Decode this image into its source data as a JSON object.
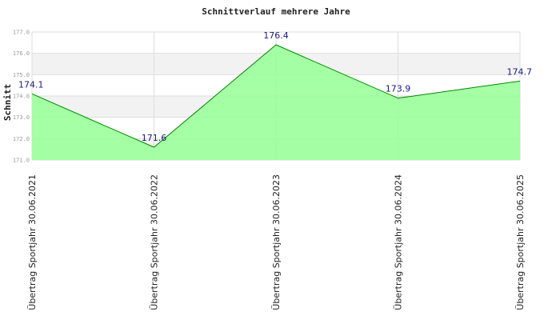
{
  "chart_data": {
    "type": "area",
    "title": "Schnittverlauf mehrere Jahre",
    "xlabel": "",
    "ylabel": "Schnitt",
    "categories": [
      "Übertrag Sportjahr 30.06.2021",
      "Übertrag Sportjahr 30.06.2022",
      "Übertrag Sportjahr 30.06.2023",
      "Übertrag Sportjahr 30.06.2024",
      "Übertrag Sportjahr 30.06.2025"
    ],
    "values": [
      174.1,
      171.6,
      176.4,
      173.9,
      174.7
    ],
    "data_labels": [
      "174.1",
      "171.6",
      "176.4",
      "173.9",
      "174.7"
    ],
    "ylim": [
      171,
      177
    ],
    "yticks": [
      171,
      172,
      173,
      174,
      175,
      176,
      177
    ],
    "ytick_labels": [
      "171.0",
      "172.0",
      "173.0",
      "174.0",
      "175.0",
      "176.0",
      "177.0"
    ],
    "grid": true,
    "colors": {
      "fill": "#99ff99",
      "line": "#008800",
      "band_a": "#f2f2f2",
      "band_b": "#ffffff",
      "gridline": "#dddddd",
      "label": "#1a1a7a"
    }
  }
}
